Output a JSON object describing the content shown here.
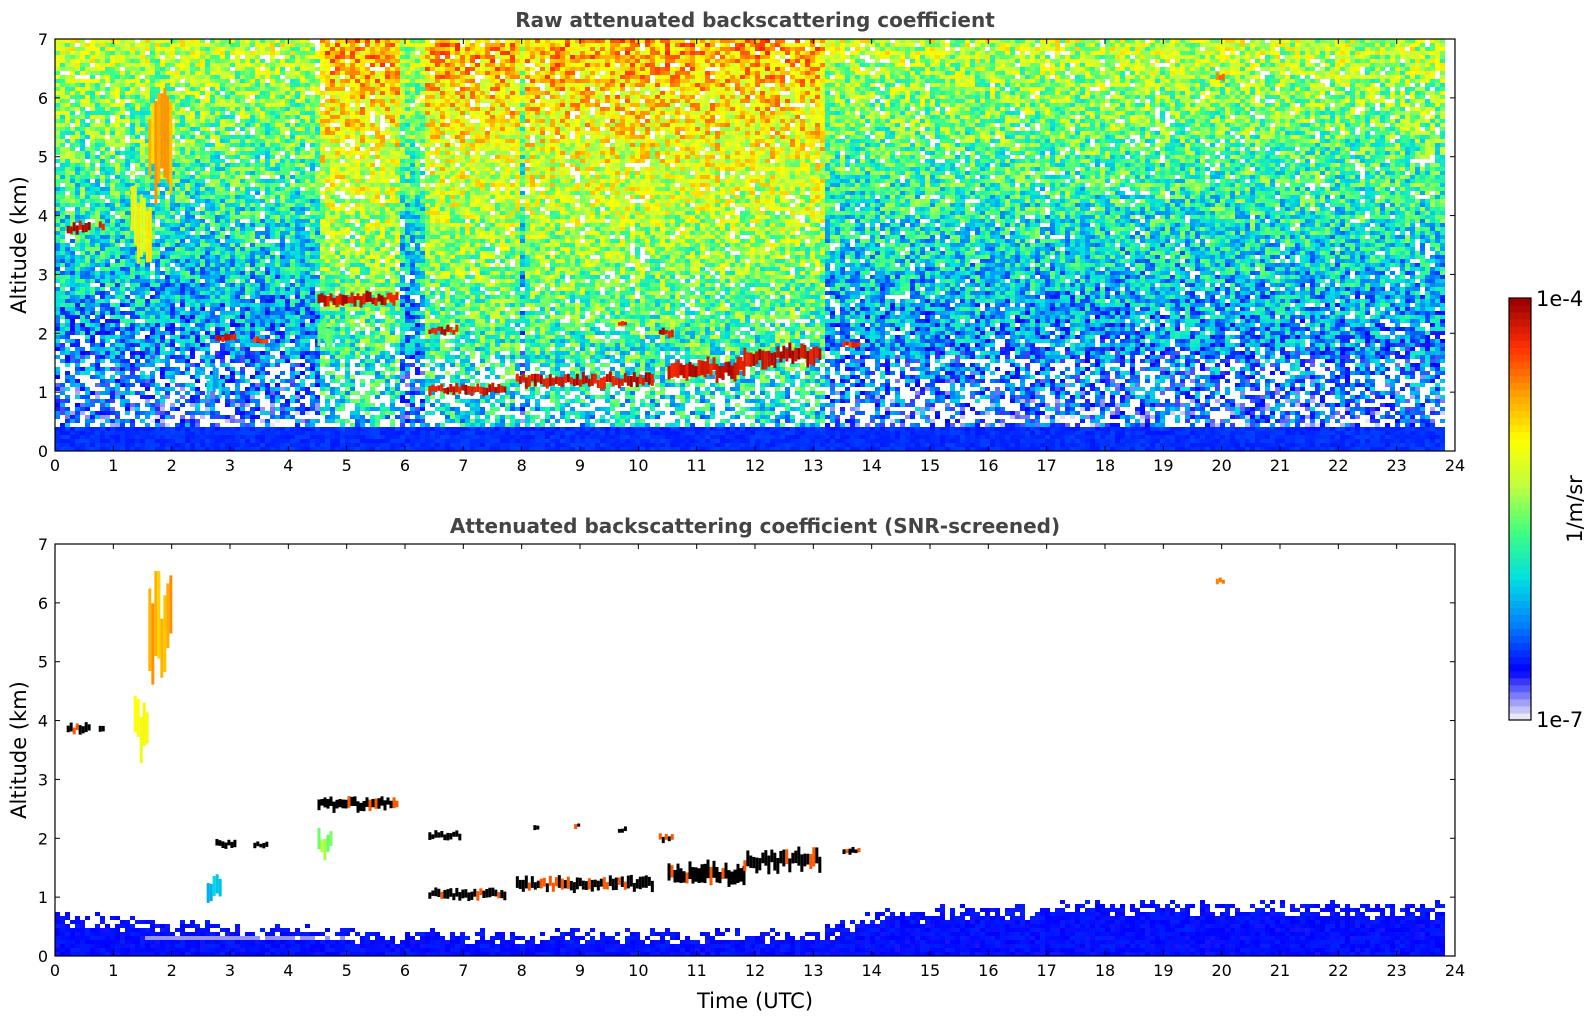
{
  "chart_data": [
    {
      "type": "heatmap",
      "title": "Raw attenuated backscattering coefficient",
      "xlabel": "",
      "ylabel": "Altitude (km)",
      "xlim": [
        0,
        24
      ],
      "ylim": [
        0,
        7
      ],
      "xticks": [
        0,
        1,
        2,
        3,
        4,
        5,
        6,
        7,
        8,
        9,
        10,
        11,
        12,
        13,
        14,
        15,
        16,
        17,
        18,
        19,
        20,
        21,
        22,
        23,
        24
      ],
      "yticks": [
        0,
        1,
        2,
        3,
        4,
        5,
        6,
        7
      ],
      "data_end_hour": 23.8,
      "background_noise": "dense speckle increasing with altitude; blue near surface to green/yellow aloft",
      "high_noise_periods": [
        [
          4.5,
          5.85
        ],
        [
          6.3,
          7.9
        ],
        [
          8.0,
          13.15
        ]
      ],
      "features": [
        {
          "t0": 0.2,
          "t1": 0.6,
          "alt": 3.8,
          "thick": 0.18,
          "level": 1.0
        },
        {
          "t0": 0.75,
          "t1": 0.85,
          "alt": 3.82,
          "thick": 0.1,
          "level": 0.95
        },
        {
          "t0": 1.3,
          "t1": 1.65,
          "alt": 3.9,
          "thick": 1.0,
          "level": 0.7
        },
        {
          "t0": 1.6,
          "t1": 2.0,
          "alt": 5.5,
          "thick": 1.6,
          "level": 0.8
        },
        {
          "t0": 2.75,
          "t1": 3.1,
          "alt": 1.92,
          "thick": 0.12,
          "level": 1.0
        },
        {
          "t0": 3.4,
          "t1": 3.65,
          "alt": 1.88,
          "thick": 0.1,
          "level": 0.95
        },
        {
          "t0": 2.6,
          "t1": 2.85,
          "alt": 1.15,
          "thick": 0.4,
          "level": 0.35
        },
        {
          "t0": 4.5,
          "t1": 5.85,
          "alt": 2.58,
          "thick": 0.18,
          "level": 1.0
        },
        {
          "t0": 4.5,
          "t1": 4.75,
          "alt": 1.95,
          "thick": 0.4,
          "level": 0.55
        },
        {
          "t0": 6.4,
          "t1": 6.9,
          "alt": 2.05,
          "thick": 0.12,
          "level": 1.0
        },
        {
          "t0": 6.4,
          "t1": 7.7,
          "alt": 1.05,
          "thick": 0.15,
          "level": 1.0
        },
        {
          "t0": 7.9,
          "t1": 10.25,
          "alt": 1.2,
          "thick": 0.2,
          "level": 1.0
        },
        {
          "t0": 10.5,
          "t1": 11.8,
          "alt": 1.4,
          "thick": 0.3,
          "level": 1.0
        },
        {
          "t0": 11.8,
          "t1": 13.1,
          "alt": 1.62,
          "thick": 0.3,
          "level": 1.0
        },
        {
          "t0": 10.35,
          "t1": 10.6,
          "alt": 2.0,
          "thick": 0.12,
          "level": 1.0
        },
        {
          "t0": 9.65,
          "t1": 9.8,
          "alt": 2.15,
          "thick": 0.08,
          "level": 1.0
        },
        {
          "t0": 13.5,
          "t1": 13.8,
          "alt": 1.8,
          "thick": 0.1,
          "level": 0.95
        },
        {
          "t0": 19.9,
          "t1": 20.05,
          "alt": 6.35,
          "thick": 0.12,
          "level": 0.85
        }
      ]
    },
    {
      "type": "heatmap",
      "title": "Attenuated backscattering coefficient (SNR-screened)",
      "xlabel": "Time (UTC)",
      "ylabel": "Altitude (km)",
      "xlim": [
        0,
        24
      ],
      "ylim": [
        0,
        7
      ],
      "xticks": [
        0,
        1,
        2,
        3,
        4,
        5,
        6,
        7,
        8,
        9,
        10,
        11,
        12,
        13,
        14,
        15,
        16,
        17,
        18,
        19,
        20,
        21,
        22,
        23,
        24
      ],
      "yticks": [
        0,
        1,
        2,
        3,
        4,
        5,
        6,
        7
      ],
      "data_end_hour": 23.8,
      "boundary_layer_top_km": [
        [
          0,
          0.75
        ],
        [
          3,
          0.55
        ],
        [
          6,
          0.45
        ],
        [
          8,
          0.45
        ],
        [
          13,
          0.45
        ],
        [
          14,
          0.8
        ],
        [
          18,
          0.95
        ],
        [
          23.8,
          0.9
        ]
      ],
      "features": [
        {
          "t0": 0.2,
          "t1": 0.6,
          "alt": 3.85,
          "thick": 0.16,
          "level": 1.1
        },
        {
          "t0": 0.75,
          "t1": 0.85,
          "alt": 3.85,
          "thick": 0.12,
          "level": 1.1
        },
        {
          "t0": 1.35,
          "t1": 1.6,
          "alt": 3.9,
          "thick": 0.8,
          "level": 0.7
        },
        {
          "t0": 1.6,
          "t1": 2.0,
          "alt": 5.6,
          "thick": 1.4,
          "level": 0.8
        },
        {
          "t0": 2.75,
          "t1": 3.1,
          "alt": 1.9,
          "thick": 0.12,
          "level": 1.1
        },
        {
          "t0": 3.4,
          "t1": 3.65,
          "alt": 1.88,
          "thick": 0.1,
          "level": 1.1
        },
        {
          "t0": 2.6,
          "t1": 2.85,
          "alt": 1.15,
          "thick": 0.4,
          "level": 0.35
        },
        {
          "t0": 4.5,
          "t1": 5.85,
          "alt": 2.58,
          "thick": 0.18,
          "level": 1.1
        },
        {
          "t0": 4.5,
          "t1": 4.75,
          "alt": 1.9,
          "thick": 0.35,
          "level": 0.55
        },
        {
          "t0": 6.4,
          "t1": 6.95,
          "alt": 2.05,
          "thick": 0.12,
          "level": 1.1
        },
        {
          "t0": 6.4,
          "t1": 7.7,
          "alt": 1.05,
          "thick": 0.15,
          "level": 1.1
        },
        {
          "t0": 7.9,
          "t1": 10.25,
          "alt": 1.22,
          "thick": 0.2,
          "level": 1.1
        },
        {
          "t0": 10.5,
          "t1": 11.8,
          "alt": 1.4,
          "thick": 0.3,
          "level": 1.1
        },
        {
          "t0": 11.8,
          "t1": 13.1,
          "alt": 1.62,
          "thick": 0.3,
          "level": 1.1
        },
        {
          "t0": 8.2,
          "t1": 8.3,
          "alt": 2.2,
          "thick": 0.1,
          "level": 1.1
        },
        {
          "t0": 8.9,
          "t1": 9.0,
          "alt": 2.22,
          "thick": 0.08,
          "level": 1.1
        },
        {
          "t0": 9.65,
          "t1": 9.8,
          "alt": 2.15,
          "thick": 0.08,
          "level": 1.1
        },
        {
          "t0": 10.35,
          "t1": 10.6,
          "alt": 2.0,
          "thick": 0.12,
          "level": 1.1
        },
        {
          "t0": 13.5,
          "t1": 13.8,
          "alt": 1.8,
          "thick": 0.1,
          "level": 1.1
        },
        {
          "t0": 19.9,
          "t1": 20.05,
          "alt": 6.38,
          "thick": 0.1,
          "level": 0.85
        }
      ]
    },
    {
      "type": "colorbar",
      "scale": "log",
      "min_label": "1e-7",
      "max_label": "1e-4",
      "label": "1/m/sr",
      "colormap": [
        "#e6e6f5",
        "#0000ff",
        "#0080ff",
        "#00e0e0",
        "#40ff80",
        "#c0ff40",
        "#ffff00",
        "#ffa000",
        "#ff3000",
        "#a00000"
      ]
    }
  ]
}
